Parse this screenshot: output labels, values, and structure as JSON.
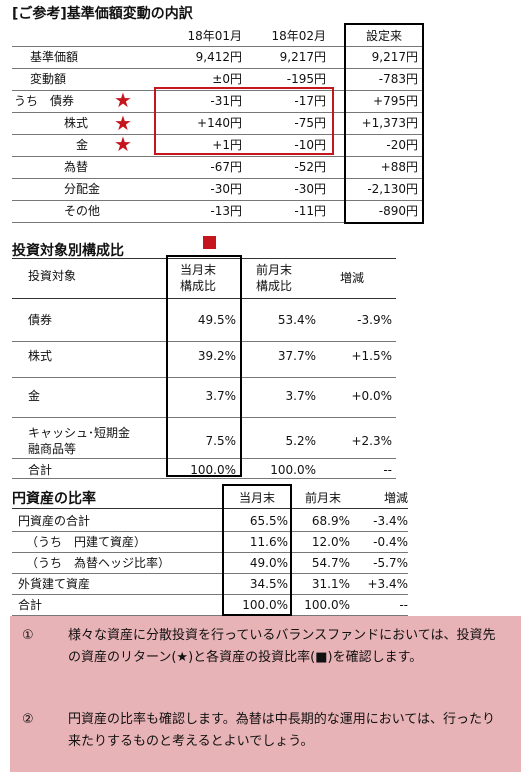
{
  "section1": {
    "title": "[ご参考]基準価額変動の内訳",
    "headers": [
      "18年01月",
      "18年02月",
      "設定来"
    ],
    "rows": [
      {
        "label": "基準価額",
        "v": [
          "9,412円",
          "9,217円",
          "9,217円"
        ]
      },
      {
        "label": "変動額",
        "v": [
          "±0円",
          "-195円",
          "-783円"
        ]
      },
      {
        "label": "うち　債券",
        "v": [
          "-31円",
          "-17円",
          "+795円"
        ]
      },
      {
        "label": "株式",
        "v": [
          "+140円",
          "-75円",
          "+1,373円"
        ]
      },
      {
        "label": "金",
        "v": [
          "+1円",
          "-10円",
          "-20円"
        ]
      },
      {
        "label": "為替",
        "v": [
          "-67円",
          "-52円",
          "+88円"
        ]
      },
      {
        "label": "分配金",
        "v": [
          "-30円",
          "-30円",
          "-2,130円"
        ]
      },
      {
        "label": "その他",
        "v": [
          "-13円",
          "-11円",
          "-890円"
        ]
      }
    ],
    "star": "★"
  },
  "section2": {
    "title": "投資対象別構成比",
    "headers": [
      "投資対象",
      "当月末",
      "構成比",
      "前月末",
      "構成比",
      "増減"
    ],
    "rows": [
      {
        "label": "債券",
        "v": [
          "49.5%",
          "53.4%",
          "-3.9%"
        ]
      },
      {
        "label": "株式",
        "v": [
          "39.2%",
          "37.7%",
          "+1.5%"
        ]
      },
      {
        "label": "金",
        "v": [
          "3.7%",
          "3.7%",
          "+0.0%"
        ]
      },
      {
        "label1": "キャッシュ･短期金",
        "label2": "融商品等",
        "v": [
          "7.5%",
          "5.2%",
          "+2.3%"
        ]
      },
      {
        "label": "合計",
        "v": [
          "100.0%",
          "100.0%",
          "--"
        ]
      }
    ]
  },
  "section3": {
    "title": "円資産の比率",
    "headers": [
      "当月末",
      "前月末",
      "増減"
    ],
    "rows": [
      {
        "label": "円資産の合計",
        "v": [
          "65.5%",
          "68.9%",
          "-3.4%"
        ]
      },
      {
        "label": "（うち　円建て資産）",
        "v": [
          "11.6%",
          "12.0%",
          "-0.4%"
        ]
      },
      {
        "label": "（うち　為替ヘッジ比率）",
        "v": [
          "49.0%",
          "54.7%",
          "-5.7%"
        ]
      },
      {
        "label": "外貨建て資産",
        "v": [
          "34.5%",
          "31.1%",
          "+3.4%"
        ]
      },
      {
        "label": "合計",
        "v": [
          "100.0%",
          "100.0%",
          "--"
        ]
      }
    ]
  },
  "notes": {
    "n1": "①",
    "t1": "様々な資産に分散投資を行っているバランスファンドにおいては、投資先の資産のリターン(★)と各資産の投資比率(■)を確認します。",
    "n2": "②",
    "t2": "円資産の比率も確認します。為替は中長期的な運用においては、行ったり来たりするものと考えるとよいでしょう。"
  },
  "colors": {
    "accent_red": "#c4161c",
    "note_bg": "#e8b3b6"
  }
}
